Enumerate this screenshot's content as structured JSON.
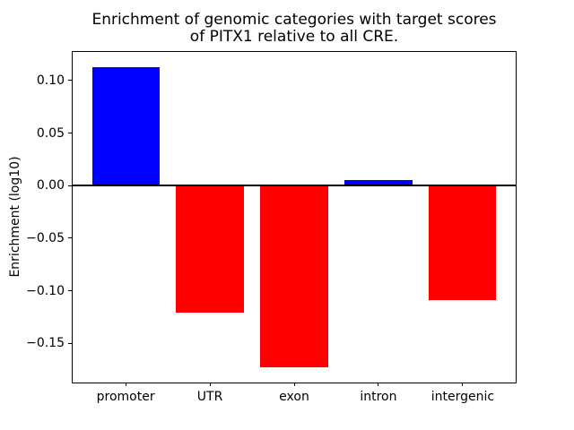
{
  "figure": {
    "title_line1": "Enrichment of genomic categories with target scores",
    "title_line2": "of PITX1 relative to all CRE.",
    "ylabel": "Enrichment (log10)",
    "background_color": "#ffffff",
    "text_color": "#000000"
  },
  "chart_data": {
    "type": "bar",
    "title": "Enrichment of genomic categories with target scores\nof PITX1 relative to all CRE.",
    "xlabel": "",
    "ylabel": "Enrichment (log10)",
    "categories": [
      "promoter",
      "UTR",
      "exon",
      "intron",
      "intergenic"
    ],
    "values": [
      0.113,
      -0.121,
      -0.173,
      0.005,
      -0.109
    ],
    "bar_colors": [
      "#0000ff",
      "#ff0000",
      "#ff0000",
      "#0000ff",
      "#ff0000"
    ],
    "positive_color": "#0000ff",
    "negative_color": "#ff0000",
    "yticks": [
      0.1,
      0.05,
      0.0,
      -0.05,
      -0.1,
      -0.15
    ],
    "ylim": [
      -0.1874,
      0.1276
    ],
    "bar_width_fraction": 0.8,
    "grid": false,
    "legend": "none",
    "zero_line": true,
    "zero_line_width": 2
  }
}
